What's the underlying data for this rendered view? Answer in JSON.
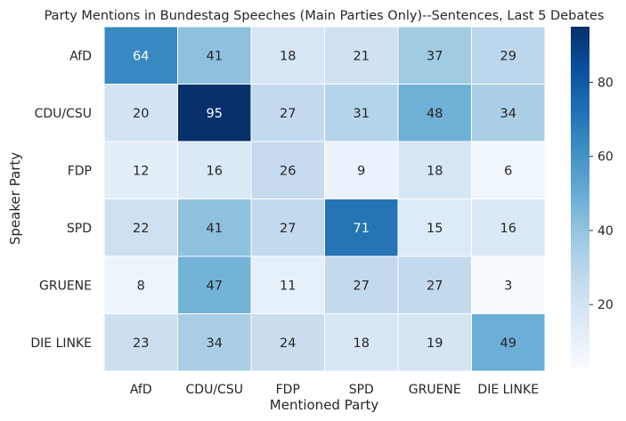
{
  "chart_data": {
    "type": "heatmap",
    "title": "Party Mentions in Bundestag Speeches (Main Parties Only)--Sentences, Last 5 Debates",
    "xlabel": "Mentioned Party",
    "ylabel": "Speaker Party",
    "x_categories": [
      "AfD",
      "CDU/CSU",
      "FDP",
      "SPD",
      "GRUENE",
      "DIE LINKE"
    ],
    "y_categories": [
      "AfD",
      "CDU/CSU",
      "FDP",
      "SPD",
      "GRUENE",
      "DIE LINKE"
    ],
    "values": [
      [
        64,
        41,
        18,
        21,
        37,
        29
      ],
      [
        20,
        95,
        27,
        31,
        48,
        34
      ],
      [
        12,
        16,
        26,
        9,
        18,
        6
      ],
      [
        22,
        41,
        27,
        71,
        15,
        16
      ],
      [
        8,
        47,
        11,
        27,
        27,
        3
      ],
      [
        23,
        34,
        24,
        18,
        19,
        49
      ]
    ],
    "colorbar": {
      "colormap": "Blues",
      "range": [
        3,
        95
      ],
      "ticks": [
        "20",
        "40",
        "60",
        "80"
      ]
    },
    "grid": true,
    "legend": "colorbar-right"
  }
}
